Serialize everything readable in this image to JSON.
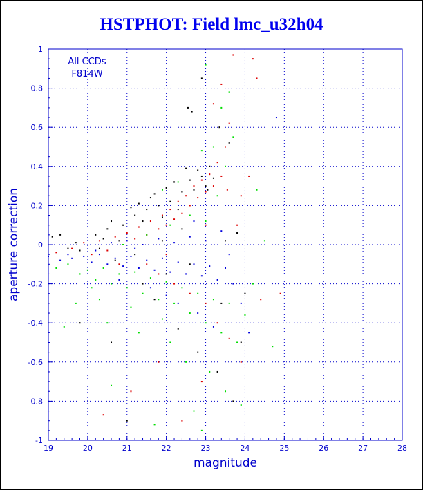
{
  "chart_data": {
    "type": "scatter",
    "title": "HSTPHOT: Field lmc_u32h04",
    "xlabel": "magnitude",
    "ylabel": "aperture correction",
    "xlim": [
      19,
      28
    ],
    "ylim": [
      -1,
      1
    ],
    "xticks": [
      "19",
      "20",
      "21",
      "22",
      "23",
      "24",
      "25",
      "26",
      "27",
      "28"
    ],
    "yticks": [
      "-1",
      "-0.8",
      "-0.6",
      "-0.4",
      "-0.2",
      "0",
      "0.2",
      "0.4",
      "0.6",
      "0.8",
      "1"
    ],
    "grid": true,
    "annotations": [
      "All CCDs",
      "F814W"
    ],
    "series": [
      {
        "color": "#000000",
        "points": [
          [
            19.1,
            0.04
          ],
          [
            19.3,
            0.05
          ],
          [
            19.5,
            -0.02
          ],
          [
            19.7,
            0.01
          ],
          [
            19.8,
            -0.03
          ],
          [
            20.2,
            0.05
          ],
          [
            20.4,
            0.03
          ],
          [
            20.5,
            0.08
          ],
          [
            20.6,
            0.12
          ],
          [
            20.8,
            0.02
          ],
          [
            20.9,
            0.1
          ],
          [
            21.1,
            0.19
          ],
          [
            21.2,
            0.15
          ],
          [
            21.3,
            0.21
          ],
          [
            21.4,
            0.12
          ],
          [
            21.5,
            0.18
          ],
          [
            21.6,
            0.24
          ],
          [
            21.7,
            0.26
          ],
          [
            21.8,
            0.2
          ],
          [
            21.9,
            0.14
          ],
          [
            22.0,
            0.29
          ],
          [
            22.1,
            0.22
          ],
          [
            22.2,
            0.32
          ],
          [
            22.3,
            0.18
          ],
          [
            22.4,
            0.27
          ],
          [
            22.5,
            0.39
          ],
          [
            22.6,
            0.33
          ],
          [
            22.7,
            0.28
          ],
          [
            22.8,
            0.38
          ],
          [
            22.9,
            0.35
          ],
          [
            23.0,
            0.3
          ],
          [
            23.1,
            0.4
          ],
          [
            23.2,
            0.34
          ],
          [
            22.55,
            0.7
          ],
          [
            22.65,
            0.68
          ],
          [
            22.9,
            0.85
          ],
          [
            23.05,
            0.28
          ],
          [
            21.4,
            -0.2
          ],
          [
            21.7,
            -0.28
          ],
          [
            22.3,
            -0.43
          ],
          [
            22.8,
            -0.55
          ],
          [
            23.3,
            -0.65
          ],
          [
            23.7,
            -0.8
          ],
          [
            21.0,
            -0.9
          ],
          [
            20.6,
            -0.5
          ],
          [
            19.8,
            -0.4
          ],
          [
            22.0,
            -0.15
          ],
          [
            22.6,
            -0.1
          ],
          [
            23.4,
            -0.3
          ],
          [
            23.9,
            -0.5
          ],
          [
            23.5,
            0.02
          ],
          [
            23.8,
            0.06
          ],
          [
            24.0,
            -0.25
          ],
          [
            23.6,
            0.52
          ],
          [
            23.35,
            0.6
          ],
          [
            21.9,
            0.02
          ],
          [
            21.2,
            -0.05
          ],
          [
            20.7,
            -0.08
          ],
          [
            20.3,
            -0.02
          ],
          [
            22.4,
            0.08
          ]
        ]
      },
      {
        "color": "#dd0000",
        "points": [
          [
            19.2,
            -0.04
          ],
          [
            19.6,
            -0.02
          ],
          [
            19.9,
            0.01
          ],
          [
            20.1,
            -0.05
          ],
          [
            20.3,
            0.02
          ],
          [
            20.5,
            -0.03
          ],
          [
            20.7,
            0.04
          ],
          [
            20.9,
            0.0
          ],
          [
            21.0,
            0.06
          ],
          [
            21.2,
            0.03
          ],
          [
            21.3,
            0.09
          ],
          [
            21.5,
            0.05
          ],
          [
            21.6,
            0.12
          ],
          [
            21.8,
            0.08
          ],
          [
            21.9,
            0.15
          ],
          [
            22.0,
            0.1
          ],
          [
            22.1,
            0.18
          ],
          [
            22.2,
            0.13
          ],
          [
            22.3,
            0.22
          ],
          [
            22.4,
            0.16
          ],
          [
            22.5,
            0.25
          ],
          [
            22.6,
            0.2
          ],
          [
            22.7,
            0.3
          ],
          [
            22.8,
            0.24
          ],
          [
            22.9,
            0.33
          ],
          [
            23.0,
            0.27
          ],
          [
            23.1,
            0.36
          ],
          [
            23.2,
            0.3
          ],
          [
            23.3,
            0.42
          ],
          [
            23.4,
            0.35
          ],
          [
            23.5,
            0.5
          ],
          [
            23.55,
            0.28
          ],
          [
            23.6,
            0.62
          ],
          [
            23.2,
            0.72
          ],
          [
            23.4,
            0.82
          ],
          [
            23.7,
            0.97
          ],
          [
            24.2,
            0.95
          ],
          [
            24.3,
            0.85
          ],
          [
            23.9,
            0.25
          ],
          [
            23.8,
            0.1
          ],
          [
            21.5,
            -0.1
          ],
          [
            21.8,
            -0.15
          ],
          [
            22.2,
            -0.2
          ],
          [
            22.6,
            -0.25
          ],
          [
            23.0,
            -0.3
          ],
          [
            23.3,
            -0.4
          ],
          [
            23.6,
            -0.48
          ],
          [
            23.9,
            -0.6
          ],
          [
            22.9,
            -0.7
          ],
          [
            22.4,
            -0.9
          ],
          [
            21.8,
            -0.6
          ],
          [
            21.1,
            -0.75
          ],
          [
            20.4,
            -0.87
          ],
          [
            24.4,
            -0.28
          ],
          [
            24.9,
            -0.25
          ],
          [
            23.0,
            0.1
          ],
          [
            22.0,
            -0.05
          ],
          [
            21.4,
            0.0
          ],
          [
            20.8,
            -0.1
          ],
          [
            24.1,
            0.35
          ]
        ]
      },
      {
        "color": "#0000dd",
        "points": [
          [
            19.0,
            -0.06
          ],
          [
            19.3,
            -0.08
          ],
          [
            19.6,
            -0.07
          ],
          [
            19.9,
            -0.06
          ],
          [
            20.1,
            -0.09
          ],
          [
            20.3,
            -0.05
          ],
          [
            20.5,
            -0.1
          ],
          [
            20.7,
            -0.07
          ],
          [
            20.9,
            -0.11
          ],
          [
            21.1,
            -0.06
          ],
          [
            21.3,
            -0.12
          ],
          [
            21.5,
            -0.08
          ],
          [
            21.7,
            -0.13
          ],
          [
            21.9,
            -0.07
          ],
          [
            22.1,
            -0.14
          ],
          [
            22.3,
            -0.09
          ],
          [
            22.5,
            -0.15
          ],
          [
            22.7,
            -0.1
          ],
          [
            22.9,
            -0.16
          ],
          [
            23.1,
            -0.11
          ],
          [
            23.3,
            -0.18
          ],
          [
            23.5,
            -0.12
          ],
          [
            23.7,
            -0.2
          ],
          [
            20.6,
            0.01
          ],
          [
            21.0,
            0.02
          ],
          [
            21.4,
            0.0
          ],
          [
            21.8,
            0.03
          ],
          [
            22.2,
            0.01
          ],
          [
            22.6,
            0.04
          ],
          [
            23.0,
            0.02
          ],
          [
            22.3,
            -0.3
          ],
          [
            22.8,
            -0.35
          ],
          [
            23.2,
            -0.42
          ],
          [
            23.6,
            -0.05
          ],
          [
            23.9,
            -0.3
          ],
          [
            24.1,
            -0.45
          ],
          [
            21.6,
            -0.22
          ],
          [
            22.0,
            -0.26
          ],
          [
            20.8,
            -0.18
          ],
          [
            24.8,
            0.65
          ],
          [
            23.4,
            0.07
          ],
          [
            22.7,
            0.12
          ],
          [
            21.2,
            -0.02
          ],
          [
            20.2,
            -0.03
          ],
          [
            19.5,
            -0.05
          ]
        ]
      },
      {
        "color": "#00dd00",
        "points": [
          [
            19.2,
            -0.12
          ],
          [
            19.5,
            -0.1
          ],
          [
            19.8,
            -0.15
          ],
          [
            20.0,
            -0.13
          ],
          [
            20.2,
            -0.18
          ],
          [
            20.4,
            -0.12
          ],
          [
            20.6,
            -0.2
          ],
          [
            20.8,
            -0.15
          ],
          [
            21.0,
            -0.22
          ],
          [
            21.2,
            -0.14
          ],
          [
            21.4,
            -0.25
          ],
          [
            21.6,
            -0.17
          ],
          [
            21.8,
            -0.28
          ],
          [
            22.0,
            -0.19
          ],
          [
            22.2,
            -0.3
          ],
          [
            22.4,
            -0.22
          ],
          [
            22.6,
            -0.35
          ],
          [
            22.8,
            -0.25
          ],
          [
            23.0,
            -0.4
          ],
          [
            23.2,
            -0.28
          ],
          [
            23.4,
            -0.45
          ],
          [
            23.6,
            -0.3
          ],
          [
            23.8,
            -0.5
          ],
          [
            24.0,
            -0.36
          ],
          [
            19.7,
            -0.3
          ],
          [
            20.5,
            -0.4
          ],
          [
            21.3,
            -0.45
          ],
          [
            22.1,
            -0.5
          ],
          [
            22.5,
            -0.6
          ],
          [
            23.1,
            -0.65
          ],
          [
            23.5,
            -0.75
          ],
          [
            22.7,
            -0.85
          ],
          [
            21.7,
            -0.92
          ],
          [
            20.6,
            -0.72
          ],
          [
            20.9,
            0.0
          ],
          [
            21.5,
            0.05
          ],
          [
            22.1,
            0.1
          ],
          [
            22.6,
            0.15
          ],
          [
            23.0,
            0.12
          ],
          [
            23.3,
            0.25
          ],
          [
            23.5,
            0.4
          ],
          [
            23.7,
            0.55
          ],
          [
            23.4,
            0.7
          ],
          [
            23.6,
            0.78
          ],
          [
            23.0,
            0.92
          ],
          [
            24.3,
            0.28
          ],
          [
            24.5,
            0.02
          ],
          [
            24.7,
            -0.52
          ],
          [
            23.9,
            -0.82
          ],
          [
            21.9,
            0.28
          ],
          [
            22.3,
            0.32
          ],
          [
            22.9,
            0.48
          ],
          [
            23.2,
            0.5
          ],
          [
            20.3,
            -0.28
          ],
          [
            21.1,
            -0.32
          ],
          [
            22.9,
            -0.95
          ],
          [
            24.2,
            -0.2
          ],
          [
            19.4,
            -0.42
          ],
          [
            20.1,
            -0.22
          ],
          [
            21.9,
            -0.38
          ]
        ]
      }
    ]
  }
}
